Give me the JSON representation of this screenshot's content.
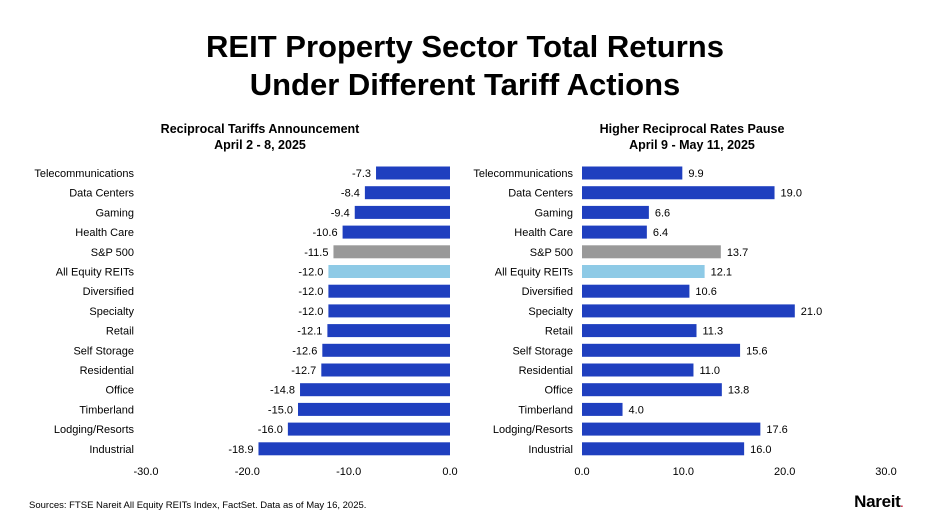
{
  "title_line1": "REIT Property Sector Total Returns",
  "title_line2": "Under Different Tariff Actions",
  "footer": "Sources: FTSE Nareit All Equity REITs Index, FactSet. Data as of May 16, 2025.",
  "logo": "Nareit",
  "logo_mark": ".",
  "colors": {
    "sector": "#1f3fbf",
    "sp500": "#999999",
    "all_equity": "#8ecae6"
  },
  "chart_data": [
    {
      "type": "bar",
      "orientation": "horizontal",
      "title_line1": "Reciprocal Tariffs Announcement",
      "title_line2": "April 2 - 8, 2025",
      "categories": [
        "Telecommunications",
        "Data Centers",
        "Gaming",
        "Health Care",
        "S&P 500",
        "All Equity REITs",
        "Diversified",
        "Specialty",
        "Retail",
        "Self Storage",
        "Residential",
        "Office",
        "Timberland",
        "Lodging/Resorts",
        "Industrial"
      ],
      "values": [
        -7.3,
        -8.4,
        -9.4,
        -10.6,
        -11.5,
        -12.0,
        -12.0,
        -12.0,
        -12.1,
        -12.6,
        -12.7,
        -14.8,
        -15.0,
        -16.0,
        -18.9
      ],
      "labels": [
        "-7.3",
        "-8.4",
        "-9.4",
        "-10.6",
        "-11.5",
        "-12.0",
        "-12.0",
        "-12.0",
        "-12.1",
        "-12.6",
        "-12.7",
        "-14.8",
        "-15.0",
        "-16.0",
        "-18.9"
      ],
      "xlim": [
        -30,
        0
      ],
      "ticks": [
        -30,
        -20,
        -10,
        0
      ],
      "tick_labels": [
        "-30.0",
        "-20.0",
        "-10.0",
        "0.0"
      ],
      "grid": false
    },
    {
      "type": "bar",
      "orientation": "horizontal",
      "title_line1": "Higher Reciprocal Rates Pause",
      "title_line2": "April 9 - May 11, 2025",
      "categories": [
        "Telecommunications",
        "Data Centers",
        "Gaming",
        "Health Care",
        "S&P 500",
        "All Equity REITs",
        "Diversified",
        "Specialty",
        "Retail",
        "Self Storage",
        "Residential",
        "Office",
        "Timberland",
        "Lodging/Resorts",
        "Industrial"
      ],
      "values": [
        9.9,
        19.0,
        6.6,
        6.4,
        13.7,
        12.1,
        10.6,
        21.0,
        11.3,
        15.6,
        11.0,
        13.8,
        4.0,
        17.6,
        16.0
      ],
      "labels": [
        "9.9",
        "19.0",
        "6.6",
        "6.4",
        "13.7",
        "12.1",
        "10.6",
        "21.0",
        "11.3",
        "15.6",
        "11.0",
        "13.8",
        "4.0",
        "17.6",
        "16.0"
      ],
      "xlim": [
        0,
        30
      ],
      "ticks": [
        0,
        10,
        20,
        30
      ],
      "tick_labels": [
        "0.0",
        "10.0",
        "20.0",
        "30.0"
      ],
      "grid": false
    }
  ]
}
